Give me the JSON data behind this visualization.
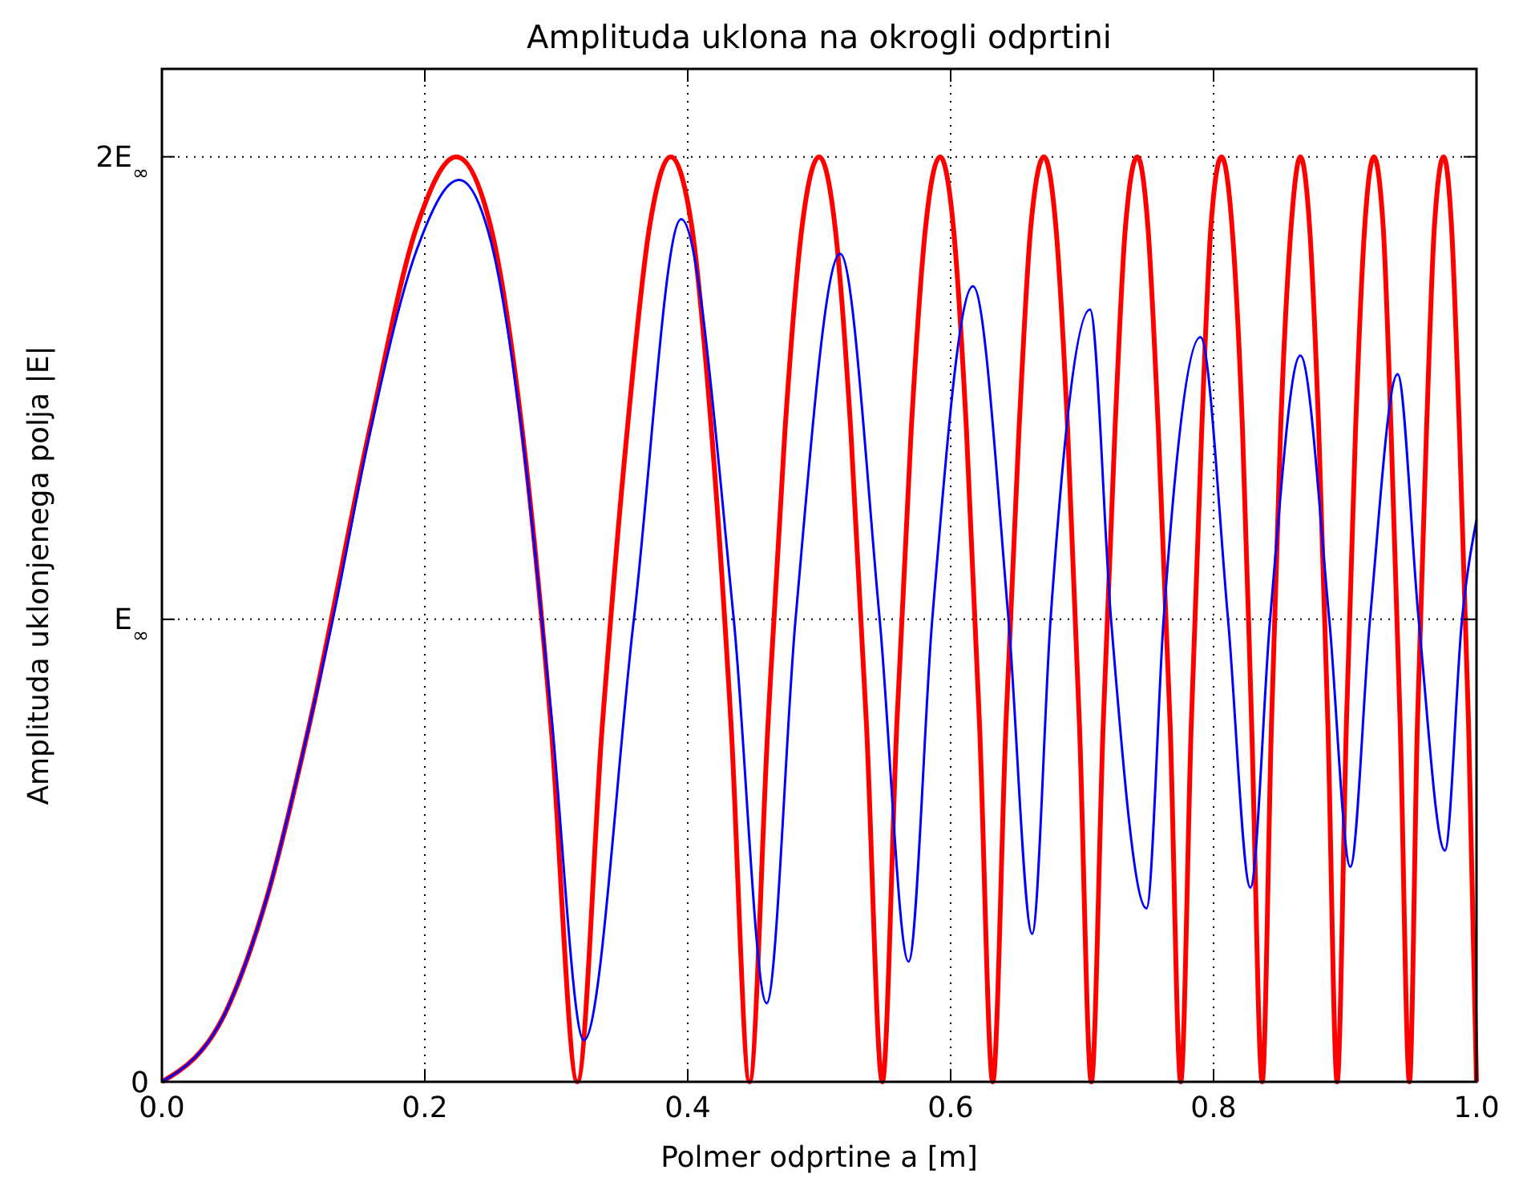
{
  "chart_data": {
    "type": "line",
    "title": "Amplituda uklona na okrogli odprtini",
    "xlabel": "Polmer odprtine a [m]",
    "ylabel": "Amplituda uklonjenega polja |E|",
    "xlim": [
      0,
      1
    ],
    "ylim": [
      0,
      2.19
    ],
    "xticks": [
      {
        "value": 0,
        "label": "0.0"
      },
      {
        "value": 0.2,
        "label": "0.2"
      },
      {
        "value": 0.4,
        "label": "0.4"
      },
      {
        "value": 0.6,
        "label": "0.6"
      },
      {
        "value": 0.8,
        "label": "0.8"
      },
      {
        "value": 1,
        "label": "1.0"
      }
    ],
    "yticks": [
      0,
      {
        "value": 1,
        "label": "E$_{∞}$"
      },
      {
        "value": 2,
        "label": "2E$_{∞}$"
      }
    ],
    "grid": true,
    "series": [
      {
        "color": "#ff0000",
        "x": [
          0,
          0.05,
          0.08,
          0.112,
          0.158,
          0.194,
          0.224,
          0.25,
          0.274,
          0.296,
          0.316,
          0.335,
          0.354,
          0.371,
          0.387,
          0.403,
          0.418,
          0.433,
          0.447,
          0.461,
          0.474,
          0.487,
          0.5,
          0.512,
          0.524,
          0.536,
          0.548,
          0.559,
          0.57,
          0.581,
          0.592,
          0.602,
          0.612,
          0.622,
          0.632,
          0.642,
          0.652,
          0.661,
          0.671,
          0.68,
          0.689,
          0.698,
          0.707,
          0.716,
          0.725,
          0.733,
          0.742,
          0.75,
          0.758,
          0.767,
          0.775,
          0.783,
          0.791,
          0.798,
          0.806,
          0.814,
          0.822,
          0.829,
          0.837,
          0.844,
          0.851,
          0.859,
          0.866,
          0.873,
          0.88,
          0.887,
          0.894,
          0.901,
          0.908,
          0.915,
          0.922,
          0.929,
          0.935,
          0.942,
          0.949,
          0.955,
          0.962,
          0.968,
          0.975,
          0.981,
          0.987,
          0.994,
          1.0
        ],
        "values": [
          0,
          0.16,
          0.4,
          0.77,
          1.41,
          1.85,
          2,
          1.85,
          1.41,
          0.77,
          0,
          0.77,
          1.41,
          1.85,
          2,
          1.85,
          1.41,
          0.77,
          0,
          0.77,
          1.41,
          1.85,
          2,
          1.85,
          1.41,
          0.77,
          0,
          0.77,
          1.41,
          1.85,
          2,
          1.85,
          1.41,
          0.77,
          0,
          0.77,
          1.41,
          1.85,
          2,
          1.85,
          1.41,
          0.77,
          0,
          0.77,
          1.41,
          1.85,
          2,
          1.85,
          1.41,
          0.77,
          0,
          0.77,
          1.41,
          1.85,
          2,
          1.85,
          1.41,
          0.77,
          0,
          0.77,
          1.41,
          1.85,
          2,
          1.85,
          1.41,
          0.77,
          0,
          0.77,
          1.41,
          1.85,
          2,
          1.85,
          1.41,
          0.77,
          0,
          0.77,
          1.41,
          1.85,
          2,
          1.85,
          1.41,
          0.77,
          0
        ]
      },
      {
        "color": "#0000ff",
        "x": [
          0,
          0.05,
          0.08,
          0.112,
          0.13,
          0.158,
          0.194,
          0.226,
          0.25,
          0.274,
          0.296,
          0.321,
          0.359,
          0.395,
          0.435,
          0.46,
          0.482,
          0.516,
          0.546,
          0.568,
          0.586,
          0.617,
          0.644,
          0.662,
          0.676,
          0.706,
          0.722,
          0.749,
          0.762,
          0.79,
          0.811,
          0.828,
          0.843,
          0.866,
          0.888,
          0.904,
          0.919,
          0.94,
          0.956,
          0.976,
          0.989,
          1.0
        ],
        "values": [
          0,
          0.16,
          0.4,
          0.77,
          1.0,
          1.4,
          1.8,
          1.95,
          1.82,
          1.4,
          0.8,
          0.09,
          1,
          1.865,
          1,
          0.17,
          1,
          1.79,
          1,
          0.26,
          1,
          1.72,
          1,
          0.32,
          1,
          1.67,
          1,
          0.375,
          1,
          1.61,
          1,
          0.42,
          1,
          1.57,
          1,
          0.465,
          1,
          1.53,
          1,
          0.5,
          1,
          1.215
        ]
      }
    ]
  }
}
